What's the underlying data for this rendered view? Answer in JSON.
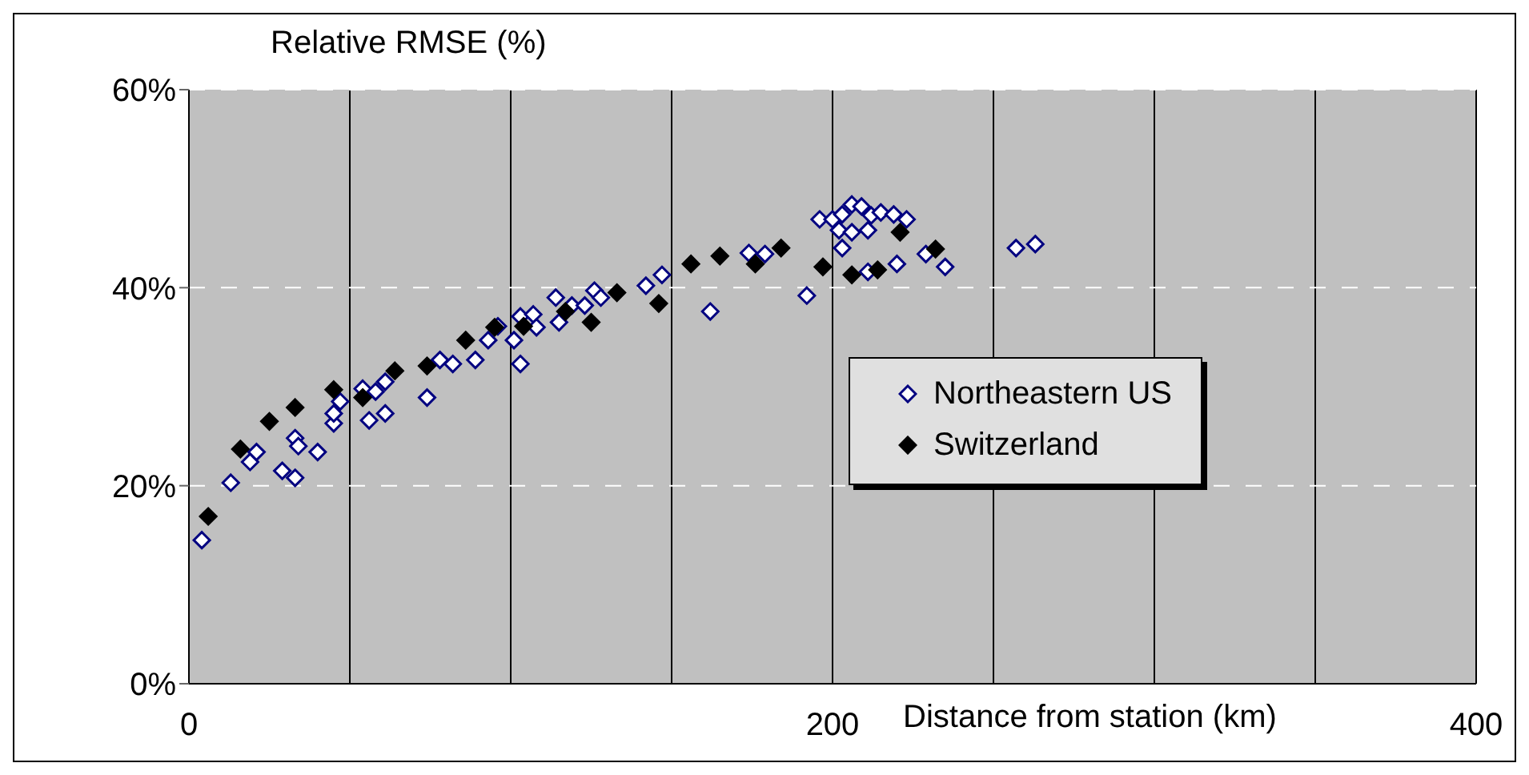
{
  "chart_data": {
    "type": "scatter",
    "xlabel": "Distance from station (km)",
    "ylabel": "Relative RMSE (%)",
    "xlim": [
      0,
      400
    ],
    "xticks": [
      0,
      {
        "value": 50,
        "label": null
      },
      {
        "value": 100,
        "label": null
      },
      {
        "value": 150,
        "label": null
      },
      200,
      {
        "value": 250,
        "label": null
      },
      {
        "value": 300,
        "label": null
      },
      {
        "value": 350,
        "label": null
      },
      400
    ],
    "ylim": [
      0,
      60
    ],
    "yticks": [
      {
        "value": 0,
        "label": "0%"
      },
      {
        "value": 20,
        "label": "20%"
      },
      {
        "value": 40,
        "label": "40%"
      },
      {
        "value": 60,
        "label": "60%"
      }
    ],
    "grid": true,
    "legend": "right",
    "marker": "diamond",
    "series": [
      {
        "name": "Northeastern US",
        "color": "#000080",
        "x": [
          4,
          13,
          19,
          21,
          29,
          33,
          33,
          34,
          40,
          45,
          45,
          47,
          54,
          56,
          58,
          61,
          61,
          74,
          78,
          82,
          89,
          93,
          96,
          101,
          103,
          103,
          107,
          108,
          114,
          115,
          119,
          123,
          126,
          128,
          142,
          147,
          162,
          174,
          179,
          192,
          196,
          200,
          203,
          206,
          209,
          212,
          215,
          219,
          223,
          202,
          206,
          211,
          203,
          211,
          220,
          229,
          235,
          257,
          263
        ],
        "values": [
          14.5,
          20.3,
          22.4,
          23.4,
          21.5,
          20.8,
          24.8,
          24,
          23.4,
          26.3,
          27.3,
          28.5,
          29.8,
          26.6,
          29.5,
          30.5,
          27.3,
          28.9,
          32.7,
          32.3,
          32.7,
          34.7,
          36.1,
          34.7,
          32.3,
          37.1,
          37.3,
          36,
          39,
          36.5,
          38.2,
          38.2,
          39.7,
          39,
          40.2,
          41.3,
          37.6,
          43.5,
          43.4,
          39.2,
          46.9,
          46.9,
          47.4,
          48.4,
          48.2,
          47.3,
          47.6,
          47.4,
          46.9,
          45.8,
          45.6,
          45.8,
          44,
          41.6,
          42.4,
          43.4,
          42.1,
          44,
          44.4
        ]
      },
      {
        "name": "Switzerland",
        "color": "#000000",
        "x": [
          6,
          16,
          25,
          33,
          45,
          54,
          64,
          74,
          86,
          95,
          104,
          117,
          125,
          133,
          146,
          156,
          165,
          176,
          184,
          197,
          206,
          214,
          221,
          232
        ],
        "values": [
          16.9,
          23.7,
          26.5,
          27.9,
          29.7,
          28.9,
          31.6,
          32.1,
          34.7,
          36,
          36.1,
          37.6,
          36.5,
          39.5,
          38.4,
          42.4,
          43.2,
          42.4,
          44,
          42.1,
          41.3,
          41.8,
          45.6,
          43.9
        ]
      }
    ]
  }
}
